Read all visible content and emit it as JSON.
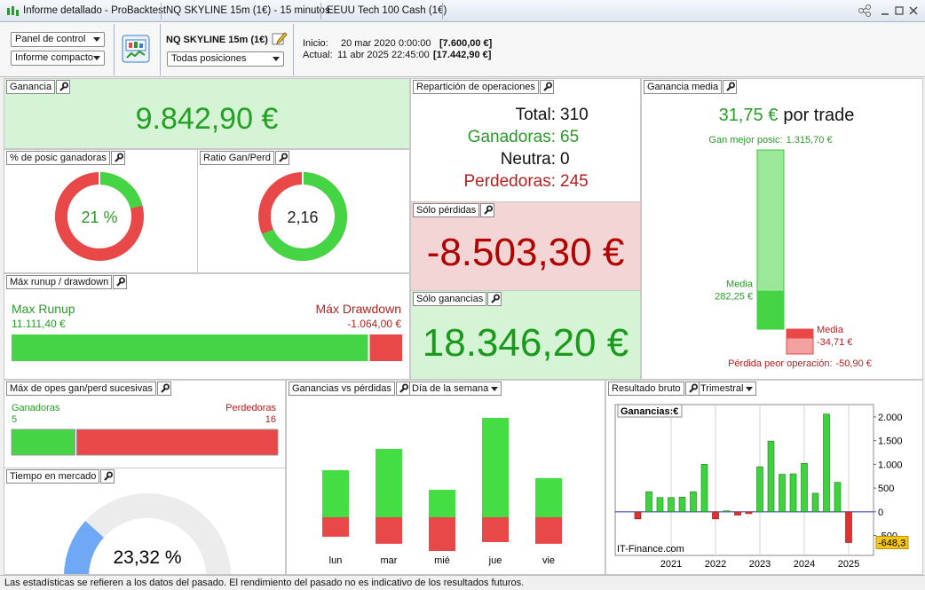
{
  "titlebar": {
    "app": "Informe detallado - ProBacktest",
    "system": "NQ SKYLINE 15m (1€) - 15 minutos",
    "instrument": "EEUU Tech 100 Cash (1€)"
  },
  "toolbar": {
    "view": "Panel de control",
    "mode": "Informe compacto",
    "system": "NQ SKYLINE 15m (1€)",
    "positions": "Todas posiciones",
    "start_label": "Inicio:",
    "start_date": "20 mar 2020 0:00:00",
    "start_capital": "[7.600,00 €]",
    "current_label": "Actual:",
    "current_date": "11 abr 2025 22:45:00",
    "current_capital": "[17.442,90 €]"
  },
  "panels": {
    "gain": {
      "title": "Ganancia",
      "value": "9.842,90 €"
    },
    "win_pct": {
      "title": "% de posic ganadoras",
      "value": {
        "value": 21,
        "label": "21 %"
      },
      "colors": [
        "#44d444",
        "#e84848"
      ]
    },
    "ratio": {
      "title": "Ratio Gan/Perd",
      "value": {
        "value": 2.16,
        "label": "2,16"
      },
      "colors": [
        "#44d444",
        "#e84848"
      ]
    },
    "runup": {
      "title": "Máx runup / drawdown",
      "runup_label": "Max Runup",
      "runup": {
        "value": 11111.4,
        "label": "11.111,40 €"
      },
      "drawdown_label": "Máx Drawdown",
      "drawdown": {
        "value": -1064,
        "label": "-1.064,00 €"
      },
      "colors": [
        "#44d444",
        "#e84848"
      ]
    },
    "trades": {
      "title": "Repartición de operaciones",
      "rows": [
        {
          "label": "Total:",
          "value": 310,
          "color": "#111111"
        },
        {
          "label": "Ganadoras:",
          "value": 65,
          "color": "#2a9a2a"
        },
        {
          "label": "Neutra:",
          "value": 0,
          "color": "#111111"
        },
        {
          "label": "Perdedoras:",
          "value": 245,
          "color": "#b22222"
        }
      ]
    },
    "losses": {
      "title": "Sólo pérdidas",
      "value": "-8.503,30 €"
    },
    "gains": {
      "title": "Sólo ganancias",
      "value": "18.346,20 €"
    },
    "avg": {
      "title": "Ganancia media",
      "value": "31,75 €",
      "unit": "por trade",
      "best_label": "Gan mejor posic:",
      "best": {
        "value": 1315.7,
        "label": "1.315,70 €"
      },
      "mean_gain_label": "Media",
      "mean_gain": {
        "value": 282.25,
        "label": "282,25 €"
      },
      "mean_loss_label": "Media",
      "mean_loss": {
        "value": -34.71,
        "label": "-34,71 €"
      },
      "worst_label": "Pérdida peor operación:",
      "worst": {
        "value": -50.9,
        "label": "-50,90 €"
      }
    },
    "consecutive": {
      "title": "Máx de opes gan/perd sucesivas",
      "wins_label": "Ganadoras",
      "wins": 5,
      "losses_label": "Perdedoras",
      "losses": 16,
      "colors": [
        "#44d444",
        "#e84848"
      ]
    },
    "time": {
      "title": "Tiempo en mercado",
      "value": {
        "value": 23.32,
        "label": "23,32 %"
      },
      "colors": [
        "#6fa8f5",
        "#ececec"
      ]
    },
    "weekday": {
      "title": "Ganancias vs pérdidas",
      "selector": "Día de la semana",
      "type": "bar",
      "categories": [
        "lun",
        "mar",
        "mié",
        "jue",
        "vie"
      ],
      "gains": [
        3070,
        4460,
        1790,
        6480,
        2550
      ],
      "losses": [
        -1270,
        -1730,
        -2200,
        -1620,
        -1730
      ],
      "colors": [
        "#44dd44",
        "#e84848"
      ]
    },
    "quarterly": {
      "title": "Resultado bruto",
      "selector": "Trimestral",
      "type": "bar",
      "legend": "Ganancias:€",
      "watermark": "IT-Finance.com",
      "x": [
        2020.25,
        2020.5,
        2020.75,
        2021,
        2021.25,
        2021.5,
        2021.75,
        2022,
        2022.25,
        2022.5,
        2022.75,
        2023,
        2023.25,
        2023.5,
        2023.75,
        2024,
        2024.25,
        2024.5,
        2024.75,
        2025
      ],
      "values": [
        -150,
        420,
        300,
        300,
        310,
        420,
        1000,
        -150,
        20,
        -70,
        -40,
        950,
        1490,
        790,
        800,
        1020,
        390,
        2060,
        620,
        -648.3
      ],
      "value_labels": [
        null,
        null,
        null,
        null,
        null,
        null,
        null,
        null,
        null,
        null,
        null,
        null,
        null,
        null,
        null,
        null,
        null,
        null,
        null,
        "-648,3"
      ],
      "xlim": [
        2019.74,
        2025.56
      ],
      "xticks": [
        2021,
        2022,
        2023,
        2024,
        2025
      ],
      "ylim": [
        -920,
        2260
      ],
      "yticks": [
        {
          "value": 2000,
          "label": "2.000"
        },
        {
          "value": 1500,
          "label": "1.500"
        },
        {
          "value": 1000,
          "label": "1.000"
        },
        500,
        0,
        -500
      ],
      "colors": [
        "#3ed23e",
        "#e03030"
      ]
    }
  },
  "footer": "Las estadísticas se refieren a los datos del pasado. El rendimiento del pasado no es indicativo de los resultados futuros."
}
